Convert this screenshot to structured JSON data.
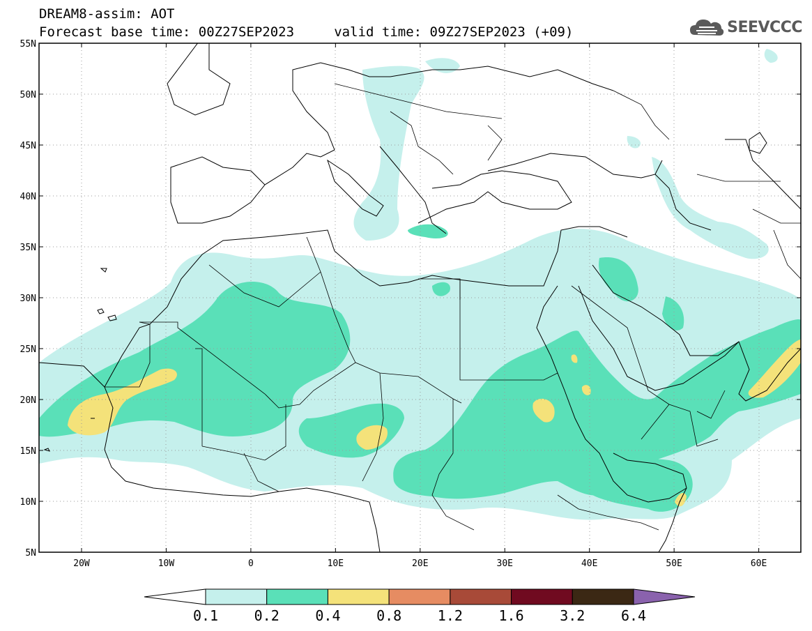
{
  "header": {
    "line1": "DREAM8-assim: AOT",
    "line2": "Forecast base time: 00Z27SEP2023     valid time: 09Z27SEP2023 (+09)"
  },
  "logo": {
    "text": "SEEVCCC",
    "icon": "cloud-icon"
  },
  "map": {
    "lat_labels": [
      "55N",
      "50N",
      "45N",
      "40N",
      "35N",
      "30N",
      "25N",
      "20N",
      "15N",
      "10N",
      "5N"
    ],
    "lon_labels": [
      "20W",
      "10W",
      "0",
      "10E",
      "20E",
      "30E",
      "40E",
      "50E",
      "60E"
    ]
  },
  "colorbar": {
    "labels": [
      "0.1",
      "0.2",
      "0.4",
      "0.8",
      "1.2",
      "1.6",
      "3.2",
      "6.4"
    ],
    "colors": [
      "#ffffff",
      "#c5f0ec",
      "#5ae0b8",
      "#f4e27a",
      "#e68c62",
      "#a84a38",
      "#700a20",
      "#3b2814",
      "#8a62ad"
    ]
  },
  "palette": {
    "light": "#c5f0ec",
    "mid": "#5ae0b8",
    "high": "#f4e27a"
  }
}
